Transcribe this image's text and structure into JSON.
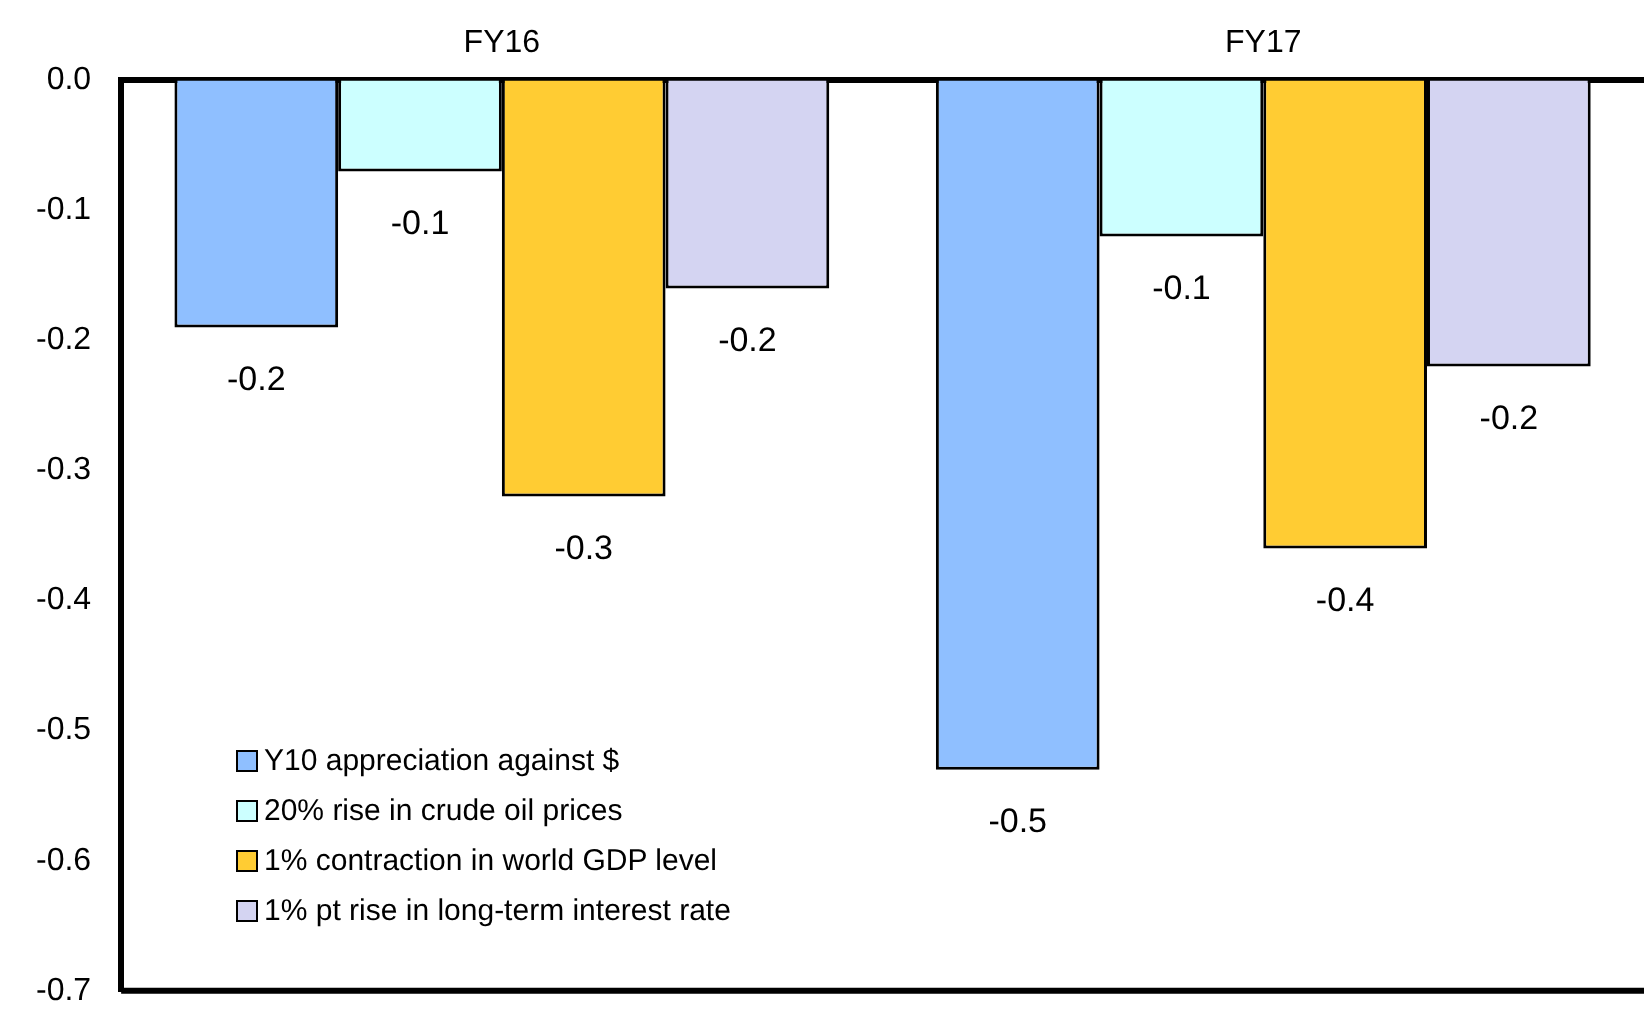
{
  "chart_data": {
    "type": "bar",
    "categories": [
      "FY16",
      "FY17"
    ],
    "series": [
      {
        "name": "Y10 appreciation against $",
        "color": "#8fbfff",
        "values": [
          -0.19,
          -0.53
        ],
        "value_labels": [
          "-0.2",
          "-0.5"
        ]
      },
      {
        "name": "20% rise in crude oil prices",
        "color": "#ccffff",
        "values": [
          -0.07,
          -0.12
        ],
        "value_labels": [
          "-0.1",
          "-0.1"
        ]
      },
      {
        "name": "1% contraction in world GDP level",
        "color": "#ffcc33",
        "values": [
          -0.32,
          -0.36
        ],
        "value_labels": [
          "-0.3",
          "-0.4"
        ]
      },
      {
        "name": "1% pt rise in long-term interest rate",
        "color": "#d4d4f2",
        "values": [
          -0.16,
          -0.22
        ],
        "value_labels": [
          "-0.2",
          "-0.2"
        ]
      }
    ],
    "ylim": [
      -0.7,
      0
    ],
    "yticks": [
      {
        "value": 0,
        "label": "0.0"
      },
      -0.1,
      -0.2,
      -0.3,
      -0.4,
      -0.5,
      -0.6,
      -0.7
    ],
    "grid": false,
    "legend": "bottom left"
  }
}
